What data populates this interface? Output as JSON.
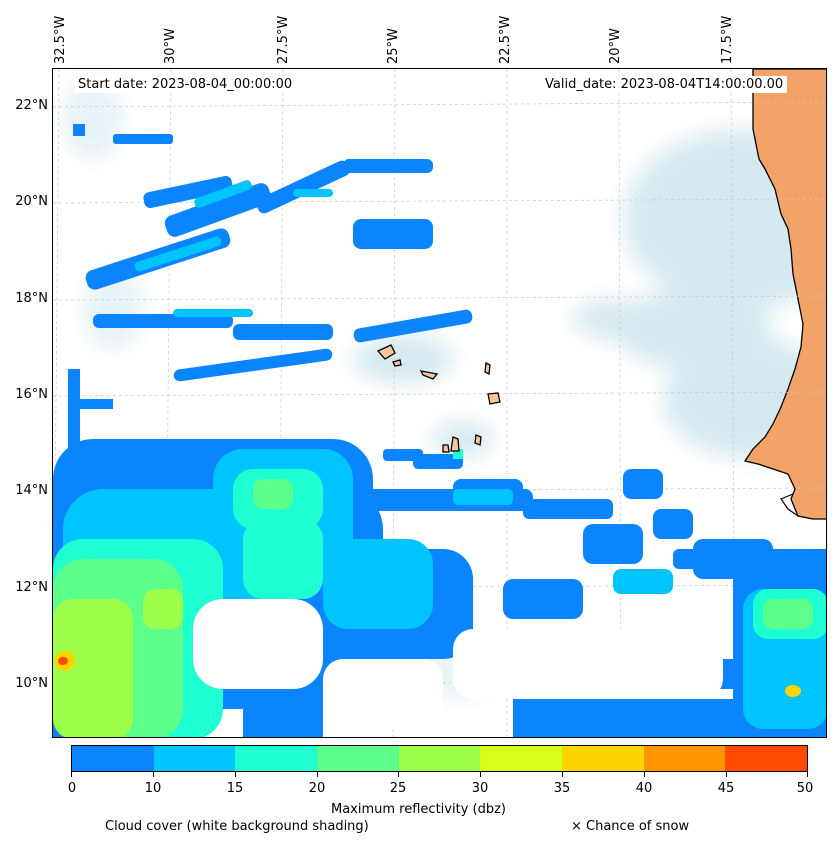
{
  "map": {
    "start_date": "Start date: 2023-08-04_00:00:00",
    "valid_date": "Valid_date: 2023-08-04T14:00:00.00",
    "longitude_labels": [
      "32.5°W",
      "30°W",
      "27.5°W",
      "25°W",
      "22.5°W",
      "20°W",
      "17.5°W"
    ],
    "latitude_labels": [
      "22°N",
      "20°N",
      "18°N",
      "16°N",
      "14°N",
      "12°N",
      "10°N"
    ]
  },
  "colorbar": {
    "title": "Maximum reflectivity (dbz)",
    "ticks": [
      "0",
      "10",
      "15",
      "20",
      "25",
      "30",
      "35",
      "40",
      "45",
      "50"
    ],
    "colors": [
      "#0a84ff",
      "#00c4ff",
      "#1effd2",
      "#5bff8a",
      "#9dff4a",
      "#d8ff1a",
      "#ffd500",
      "#ff9500",
      "#ff4a00"
    ]
  },
  "footer": {
    "cloud_cover": "Cloud cover (white background shading)",
    "snow": "× Chance of snow"
  },
  "colors": {
    "land": "#f2a468",
    "cloud": "#cfe6ee",
    "island": "#f5c79e"
  }
}
